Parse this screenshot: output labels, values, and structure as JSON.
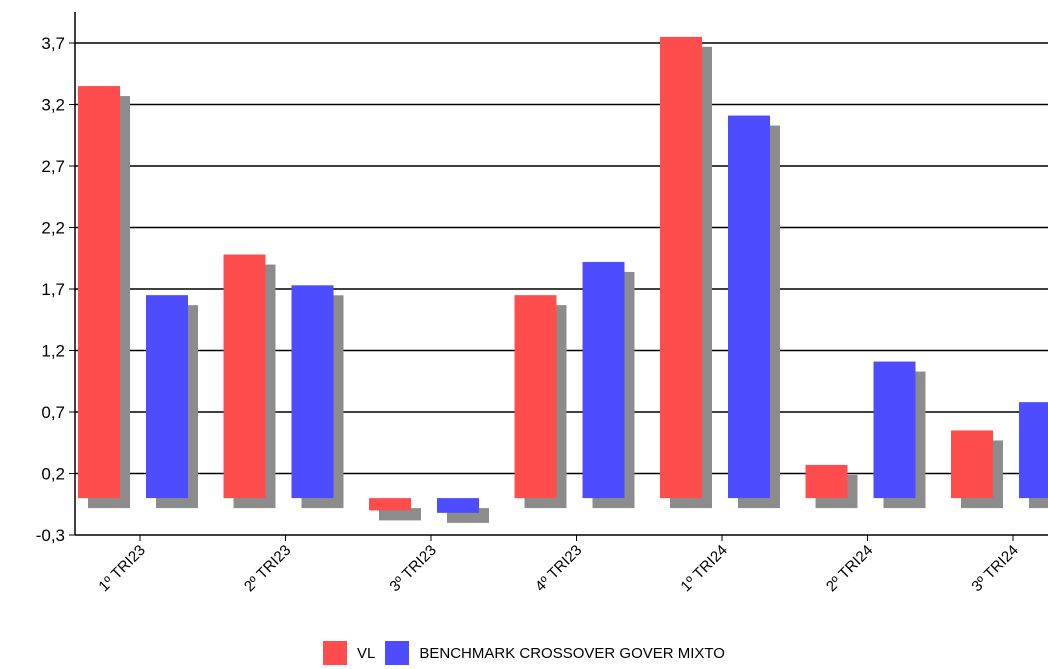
{
  "chart_data": {
    "type": "bar",
    "categories": [
      "1º TRI23",
      "2º TRI23",
      "3º TRI23",
      "4º TRI23",
      "1º TRI24",
      "2º TRI24",
      "3º TRI24"
    ],
    "series": [
      {
        "name": "VL",
        "color": "#ff4d4d",
        "values": [
          3.35,
          1.98,
          -0.1,
          1.65,
          3.75,
          0.27,
          0.55
        ]
      },
      {
        "name": "BENCHMARK CROSSOVER GOVER MIXTO",
        "color": "#4d4dff",
        "values": [
          1.65,
          1.73,
          -0.12,
          1.92,
          3.11,
          1.11,
          0.78
        ]
      }
    ],
    "yticks": [
      "3,7",
      "3,2",
      "2,7",
      "2,2",
      "1,7",
      "1,2",
      "0,7",
      "0,2",
      "-0,3"
    ],
    "ylim": [
      -0.3,
      3.7
    ],
    "grid": true,
    "shadow_color": "#8c8c8c",
    "legend_position": "bottom-center",
    "title": "",
    "xlabel": "",
    "ylabel": ""
  }
}
